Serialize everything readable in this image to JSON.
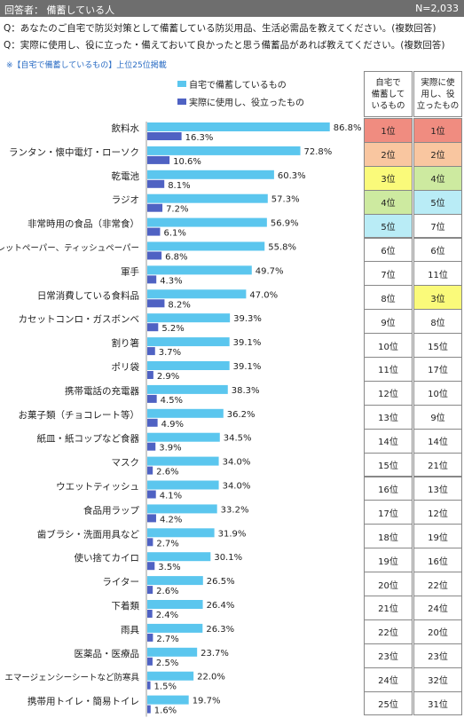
{
  "header": {
    "respondent": "回答者：  備蓄している人",
    "n": "N=2,033"
  },
  "questions": [
    "Q：あなたのご自宅で防災対策として備蓄している防災用品、生活必需品を教えてください。(複数回答)",
    "Q：実際に使用し、役に立った・備えておいて良かったと思う備蓄品があれば教えてください。(複数回答)"
  ],
  "note": "※【自宅で備蓄しているもの】上位25位掲載",
  "colors": {
    "series1": "#5bc6ee",
    "series2": "#4f62c3",
    "header_bg": "#6e6e6e",
    "rank1": "#f08c80",
    "rank2": "#f9c6a0",
    "rank3": "#fafa7a",
    "rank4": "#cdeaa0",
    "rank5": "#b9ecf6"
  },
  "rank_table": {
    "headers": [
      "自宅で\n備蓄して\nいるもの",
      "実際に使\n用し、役\n立ったもの"
    ]
  },
  "chart_data": {
    "type": "bar",
    "orientation": "horizontal",
    "categories": [
      "飲料水",
      "ランタン・懐中電灯・ローソク",
      "乾電池",
      "ラジオ",
      "非常時用の食品（非常食）",
      "トイレットペーパー、ティッシュペーパー",
      "軍手",
      "日常消費している食料品",
      "カセットコンロ・ガスボンベ",
      "割り箸",
      "ポリ袋",
      "携帯電話の充電器",
      "お菓子類（チョコレート等）",
      "紙皿・紙コップなど食器",
      "マスク",
      "ウエットティッシュ",
      "食品用ラップ",
      "歯ブラシ・洗面用具など",
      "使い捨てカイロ",
      "ライター",
      "下着類",
      "雨具",
      "医薬品・医療品",
      "エマージェンシーシートなど防寒具",
      "携帯用トイレ・簡易トイレ"
    ],
    "series": [
      {
        "name": "自宅で備蓄しているもの",
        "values": [
          86.8,
          72.8,
          60.3,
          57.3,
          56.9,
          55.8,
          49.7,
          47.0,
          39.3,
          39.1,
          39.1,
          38.3,
          36.2,
          34.5,
          34.0,
          34.0,
          33.2,
          31.9,
          30.1,
          26.5,
          26.4,
          26.3,
          23.7,
          22.0,
          19.7
        ],
        "labels": [
          "86.8%",
          "72.8%",
          "60.3%",
          "57.3%",
          "56.9%",
          "55.8%",
          "49.7%",
          "47.0%",
          "39.3%",
          "39.1%",
          "39.1%",
          "38.3%",
          "36.2%",
          "34.5%",
          "34.0%",
          "34.0%",
          "33.2%",
          "31.9%",
          "30.1%",
          "26.5%",
          "26.4%",
          "26.3%",
          "23.7%",
          "22.0%",
          "19.7%"
        ],
        "ranks": [
          "1位",
          "2位",
          "3位",
          "4位",
          "5位",
          "6位",
          "7位",
          "8位",
          "9位",
          "10位",
          "11位",
          "12位",
          "13位",
          "14位",
          "15位",
          "16位",
          "17位",
          "18位",
          "19位",
          "20位",
          "21位",
          "22位",
          "23位",
          "24位",
          "25位"
        ],
        "rank_highlight": [
          1,
          2,
          3,
          4,
          5,
          0,
          0,
          0,
          0,
          0,
          0,
          0,
          0,
          0,
          0,
          0,
          0,
          0,
          0,
          0,
          0,
          0,
          0,
          0,
          0
        ]
      },
      {
        "name": "実際に使用し、役立ったもの",
        "values": [
          16.3,
          10.6,
          8.1,
          7.2,
          6.1,
          6.8,
          4.3,
          8.2,
          5.2,
          3.7,
          2.9,
          4.5,
          4.9,
          3.9,
          2.6,
          4.1,
          4.2,
          2.7,
          3.5,
          2.6,
          2.4,
          2.7,
          2.5,
          1.5,
          1.6
        ],
        "labels": [
          "16.3%",
          "10.6%",
          "8.1%",
          "7.2%",
          "6.1%",
          "6.8%",
          "4.3%",
          "8.2%",
          "5.2%",
          "3.7%",
          "2.9%",
          "4.5%",
          "4.9%",
          "3.9%",
          "2.6%",
          "4.1%",
          "4.2%",
          "2.7%",
          "3.5%",
          "2.6%",
          "2.4%",
          "2.7%",
          "2.5%",
          "1.5%",
          "1.6%"
        ],
        "ranks": [
          "1位",
          "2位",
          "4位",
          "5位",
          "7位",
          "6位",
          "11位",
          "3位",
          "8位",
          "15位",
          "17位",
          "10位",
          "9位",
          "14位",
          "21位",
          "13位",
          "12位",
          "19位",
          "16位",
          "22位",
          "24位",
          "20位",
          "23位",
          "32位",
          "31位"
        ],
        "rank_highlight": [
          1,
          2,
          4,
          5,
          0,
          0,
          0,
          3,
          0,
          0,
          0,
          0,
          0,
          0,
          0,
          0,
          0,
          0,
          0,
          0,
          0,
          0,
          0,
          0,
          0
        ]
      }
    ],
    "xlim": [
      0,
      100
    ]
  }
}
